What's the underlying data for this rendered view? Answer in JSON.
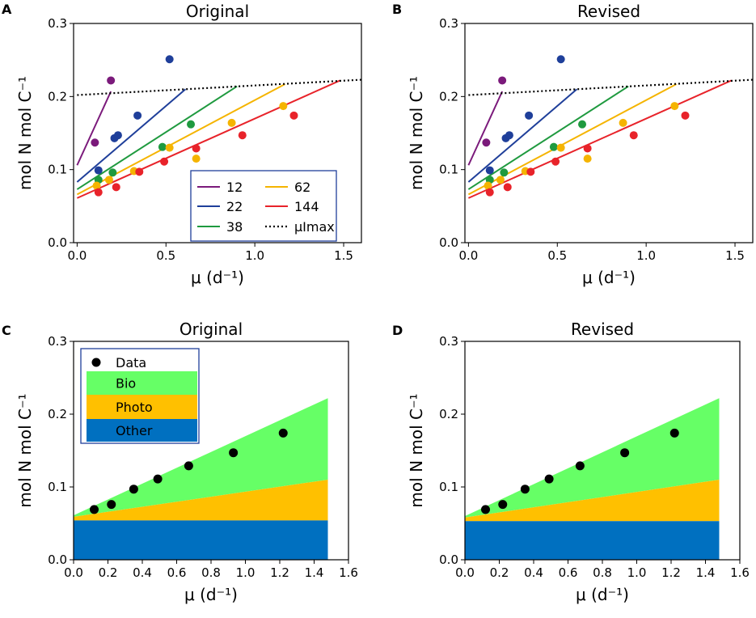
{
  "colors": {
    "12": "#7b1a7b",
    "22": "#1f3f9a",
    "38": "#1f9a3f",
    "62": "#f5b400",
    "144": "#e8232a",
    "bio": "#66ff66",
    "photo": "#ffc000",
    "other": "#0070c0",
    "legend_border": "#1f3f9a"
  },
  "chart_data": [
    {
      "id": "A",
      "panel_label": "A",
      "title": "Original",
      "type": "scatter",
      "xlabel": "μ (d⁻¹)",
      "ylabel": "mol N mol C⁻¹",
      "xlim": [
        -0.02,
        1.6
      ],
      "ylim": [
        0,
        0.3
      ],
      "xticks": [
        0.0,
        0.5,
        1.0,
        1.5
      ],
      "xtick_labels": [
        "0.0",
        "0.5",
        "1.0",
        "1.5"
      ],
      "yticks": [
        0.0,
        0.1,
        0.2,
        0.3
      ],
      "ytick_labels": [
        "0.0",
        "0.1",
        "0.2",
        "0.3"
      ],
      "legend_title": "",
      "legend": [
        "12",
        "22",
        "38",
        "62",
        "144",
        "μImax"
      ],
      "series": [
        {
          "name": "12",
          "points": [
            [
              0.1,
              0.137
            ],
            [
              0.19,
              0.222
            ]
          ],
          "line": [
            [
              0.0,
              0.106
            ],
            [
              0.19,
              0.207
            ]
          ]
        },
        {
          "name": "22",
          "points": [
            [
              0.12,
              0.099
            ],
            [
              0.21,
              0.143
            ],
            [
              0.23,
              0.147
            ],
            [
              0.34,
              0.174
            ],
            [
              0.52,
              0.251
            ]
          ],
          "line": [
            [
              0.0,
              0.083
            ],
            [
              0.61,
              0.21
            ]
          ]
        },
        {
          "name": "38",
          "points": [
            [
              0.12,
              0.086
            ],
            [
              0.2,
              0.096
            ],
            [
              0.48,
              0.131
            ],
            [
              0.64,
              0.162
            ]
          ],
          "line": [
            [
              0.0,
              0.073
            ],
            [
              0.9,
              0.214
            ]
          ]
        },
        {
          "name": "62",
          "points": [
            [
              0.11,
              0.078
            ],
            [
              0.18,
              0.086
            ],
            [
              0.32,
              0.098
            ],
            [
              0.52,
              0.13
            ],
            [
              0.67,
              0.115
            ],
            [
              0.87,
              0.164
            ],
            [
              1.16,
              0.187
            ]
          ],
          "line": [
            [
              0.0,
              0.066
            ],
            [
              1.17,
              0.217
            ]
          ]
        },
        {
          "name": "144",
          "points": [
            [
              0.12,
              0.069
            ],
            [
              0.22,
              0.076
            ],
            [
              0.35,
              0.097
            ],
            [
              0.49,
              0.111
            ],
            [
              0.67,
              0.129
            ],
            [
              0.93,
              0.147
            ],
            [
              1.22,
              0.174
            ]
          ],
          "line": [
            [
              0.0,
              0.061
            ],
            [
              1.48,
              0.222
            ]
          ]
        }
      ],
      "max_line": {
        "name": "μImax",
        "points": [
          [
            0.0,
            0.202
          ],
          [
            1.6,
            0.223
          ]
        ]
      }
    },
    {
      "id": "B",
      "panel_label": "B",
      "title": "Revised",
      "type": "scatter",
      "xlabel": "μ (d⁻¹)",
      "ylabel": "mol N mol C⁻¹",
      "xlim": [
        -0.02,
        1.6
      ],
      "ylim": [
        0,
        0.3
      ],
      "xticks": [
        0.0,
        0.5,
        1.0,
        1.5
      ],
      "xtick_labels": [
        "0.0",
        "0.5",
        "1.0",
        "1.5"
      ],
      "yticks": [
        0.0,
        0.1,
        0.2,
        0.3
      ],
      "ytick_labels": [
        "0.0",
        "0.1",
        "0.2",
        "0.3"
      ],
      "series": [
        {
          "name": "12",
          "points": [
            [
              0.1,
              0.137
            ],
            [
              0.19,
              0.222
            ]
          ],
          "line": [
            [
              0.0,
              0.106
            ],
            [
              0.19,
              0.207
            ]
          ]
        },
        {
          "name": "22",
          "points": [
            [
              0.12,
              0.099
            ],
            [
              0.21,
              0.143
            ],
            [
              0.23,
              0.147
            ],
            [
              0.34,
              0.174
            ],
            [
              0.52,
              0.251
            ]
          ],
          "line": [
            [
              0.0,
              0.083
            ],
            [
              0.61,
              0.21
            ]
          ]
        },
        {
          "name": "38",
          "points": [
            [
              0.12,
              0.086
            ],
            [
              0.2,
              0.096
            ],
            [
              0.48,
              0.131
            ],
            [
              0.64,
              0.162
            ]
          ],
          "line": [
            [
              0.0,
              0.073
            ],
            [
              0.9,
              0.214
            ]
          ]
        },
        {
          "name": "62",
          "points": [
            [
              0.11,
              0.078
            ],
            [
              0.18,
              0.086
            ],
            [
              0.32,
              0.098
            ],
            [
              0.52,
              0.13
            ],
            [
              0.67,
              0.115
            ],
            [
              0.87,
              0.164
            ],
            [
              1.16,
              0.187
            ]
          ],
          "line": [
            [
              0.0,
              0.066
            ],
            [
              1.17,
              0.217
            ]
          ]
        },
        {
          "name": "144",
          "points": [
            [
              0.12,
              0.069
            ],
            [
              0.22,
              0.076
            ],
            [
              0.35,
              0.097
            ],
            [
              0.49,
              0.111
            ],
            [
              0.67,
              0.129
            ],
            [
              0.93,
              0.147
            ],
            [
              1.22,
              0.174
            ]
          ],
          "line": [
            [
              0.0,
              0.061
            ],
            [
              1.48,
              0.222
            ]
          ]
        }
      ],
      "max_line": {
        "name": "μImax",
        "points": [
          [
            0.0,
            0.202
          ],
          [
            1.6,
            0.223
          ]
        ]
      }
    },
    {
      "id": "C",
      "panel_label": "C",
      "title": "Original",
      "type": "area",
      "xlabel": "μ (d⁻¹)",
      "ylabel": "mol N mol C⁻¹",
      "xlim": [
        0,
        1.6
      ],
      "ylim": [
        0,
        0.3
      ],
      "xticks": [
        0.0,
        0.2,
        0.4,
        0.6,
        0.8,
        1.0,
        1.2,
        1.4,
        1.6
      ],
      "xtick_labels": [
        "0.0",
        "0.2",
        "0.4",
        "0.6",
        "0.8",
        "1.0",
        "1.2",
        "1.4",
        "1.6"
      ],
      "yticks": [
        0.0,
        0.1,
        0.2,
        0.3
      ],
      "ytick_labels": [
        "0.0",
        "0.1",
        "0.2",
        "0.3"
      ],
      "legend": [
        "Data",
        "Bio",
        "Photo",
        "Other"
      ],
      "areas": {
        "x": [
          0.0,
          1.48
        ],
        "other_top": [
          0.054,
          0.054
        ],
        "photo_top": [
          0.059,
          0.11
        ],
        "bio_top": [
          0.061,
          0.222
        ]
      },
      "data": [
        [
          0.12,
          0.069
        ],
        [
          0.22,
          0.076
        ],
        [
          0.35,
          0.097
        ],
        [
          0.49,
          0.111
        ],
        [
          0.67,
          0.129
        ],
        [
          0.93,
          0.147
        ],
        [
          1.22,
          0.174
        ]
      ]
    },
    {
      "id": "D",
      "panel_label": "D",
      "title": "Revised",
      "type": "area",
      "xlabel": "μ (d⁻¹)",
      "ylabel": "mol N mol C⁻¹",
      "xlim": [
        0,
        1.6
      ],
      "ylim": [
        0,
        0.3
      ],
      "xticks": [
        0.0,
        0.2,
        0.4,
        0.6,
        0.8,
        1.0,
        1.2,
        1.4,
        1.6
      ],
      "xtick_labels": [
        "0.0",
        "0.2",
        "0.4",
        "0.6",
        "0.8",
        "1.0",
        "1.2",
        "1.4",
        "1.6"
      ],
      "yticks": [
        0.0,
        0.1,
        0.2,
        0.3
      ],
      "ytick_labels": [
        "0.0",
        "0.1",
        "0.2",
        "0.3"
      ],
      "areas": {
        "x": [
          0.0,
          1.48
        ],
        "other_top": [
          0.053,
          0.053
        ],
        "photo_top": [
          0.058,
          0.11
        ],
        "bio_top": [
          0.06,
          0.222
        ]
      },
      "data": [
        [
          0.12,
          0.069
        ],
        [
          0.22,
          0.076
        ],
        [
          0.35,
          0.097
        ],
        [
          0.49,
          0.111
        ],
        [
          0.67,
          0.129
        ],
        [
          0.93,
          0.147
        ],
        [
          1.22,
          0.174
        ]
      ]
    }
  ]
}
